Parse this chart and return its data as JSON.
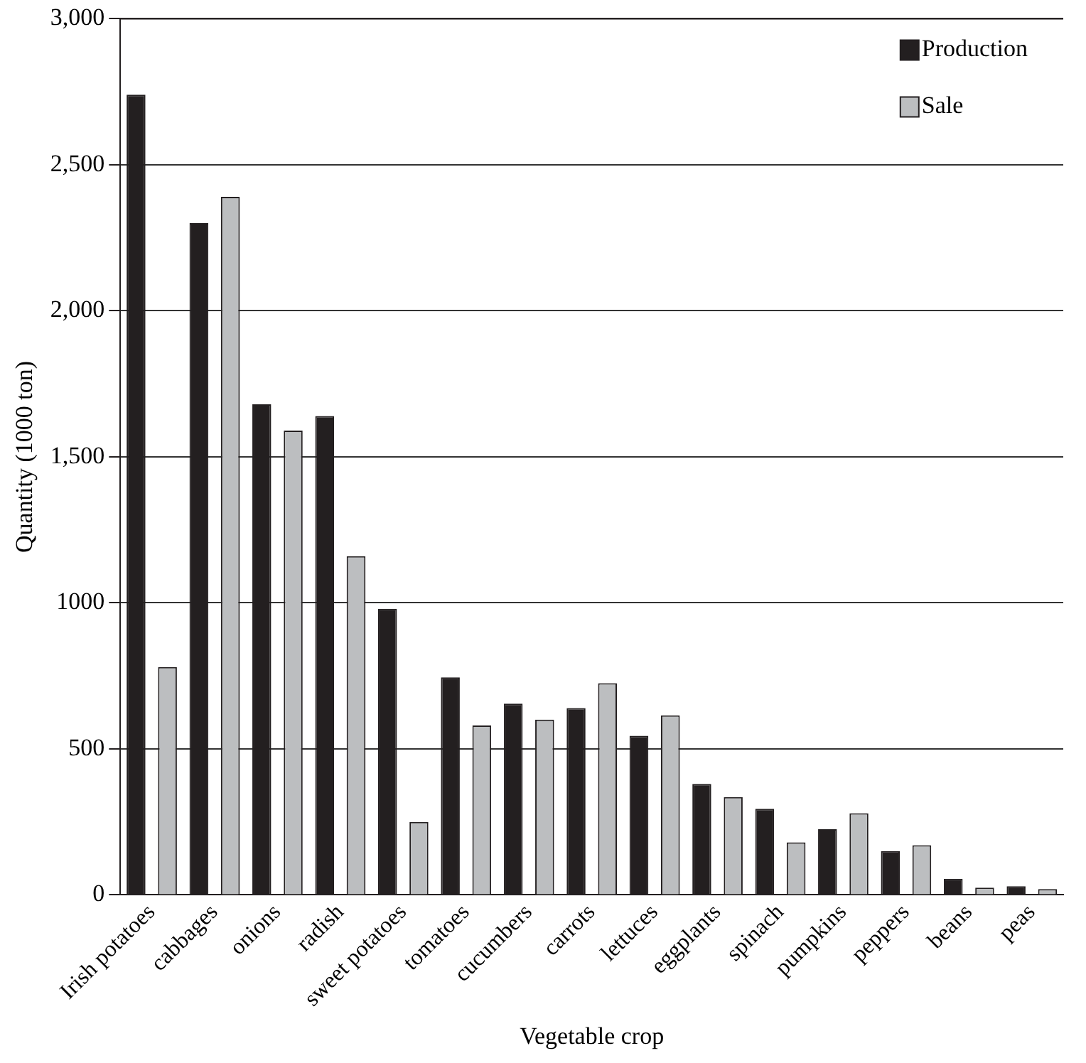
{
  "chart_data": {
    "type": "bar",
    "xlabel": "Vegetable crop",
    "ylabel": "Quantity (1000 ton)",
    "categories": [
      "Irish potatoes",
      "cabbages",
      "onions",
      "radish",
      "sweet potatoes",
      "tomatoes",
      "cucumbers",
      "carrots",
      "lettuces",
      "eggplants",
      "spinach",
      "pumpkins",
      "peppers",
      "beans",
      "peas"
    ],
    "series": [
      {
        "name": "Production",
        "color": "#231f20",
        "values": [
          2740,
          2300,
          1680,
          1640,
          980,
          745,
          655,
          640,
          545,
          380,
          295,
          225,
          150,
          55,
          30
        ]
      },
      {
        "name": "Sale",
        "color": "#bcbec0",
        "values": [
          780,
          2390,
          1590,
          1160,
          250,
          580,
          600,
          725,
          615,
          335,
          180,
          280,
          170,
          25,
          20
        ]
      }
    ],
    "ylim": [
      0,
      3000
    ],
    "yticks": [
      0,
      500,
      1000,
      {
        "value": 1500,
        "label": "1,500"
      },
      {
        "value": 2000,
        "label": "2,000"
      },
      {
        "value": 2500,
        "label": "2,500"
      },
      {
        "value": 3000,
        "label": "3,000"
      }
    ],
    "grid": "y",
    "legend": "top right"
  }
}
